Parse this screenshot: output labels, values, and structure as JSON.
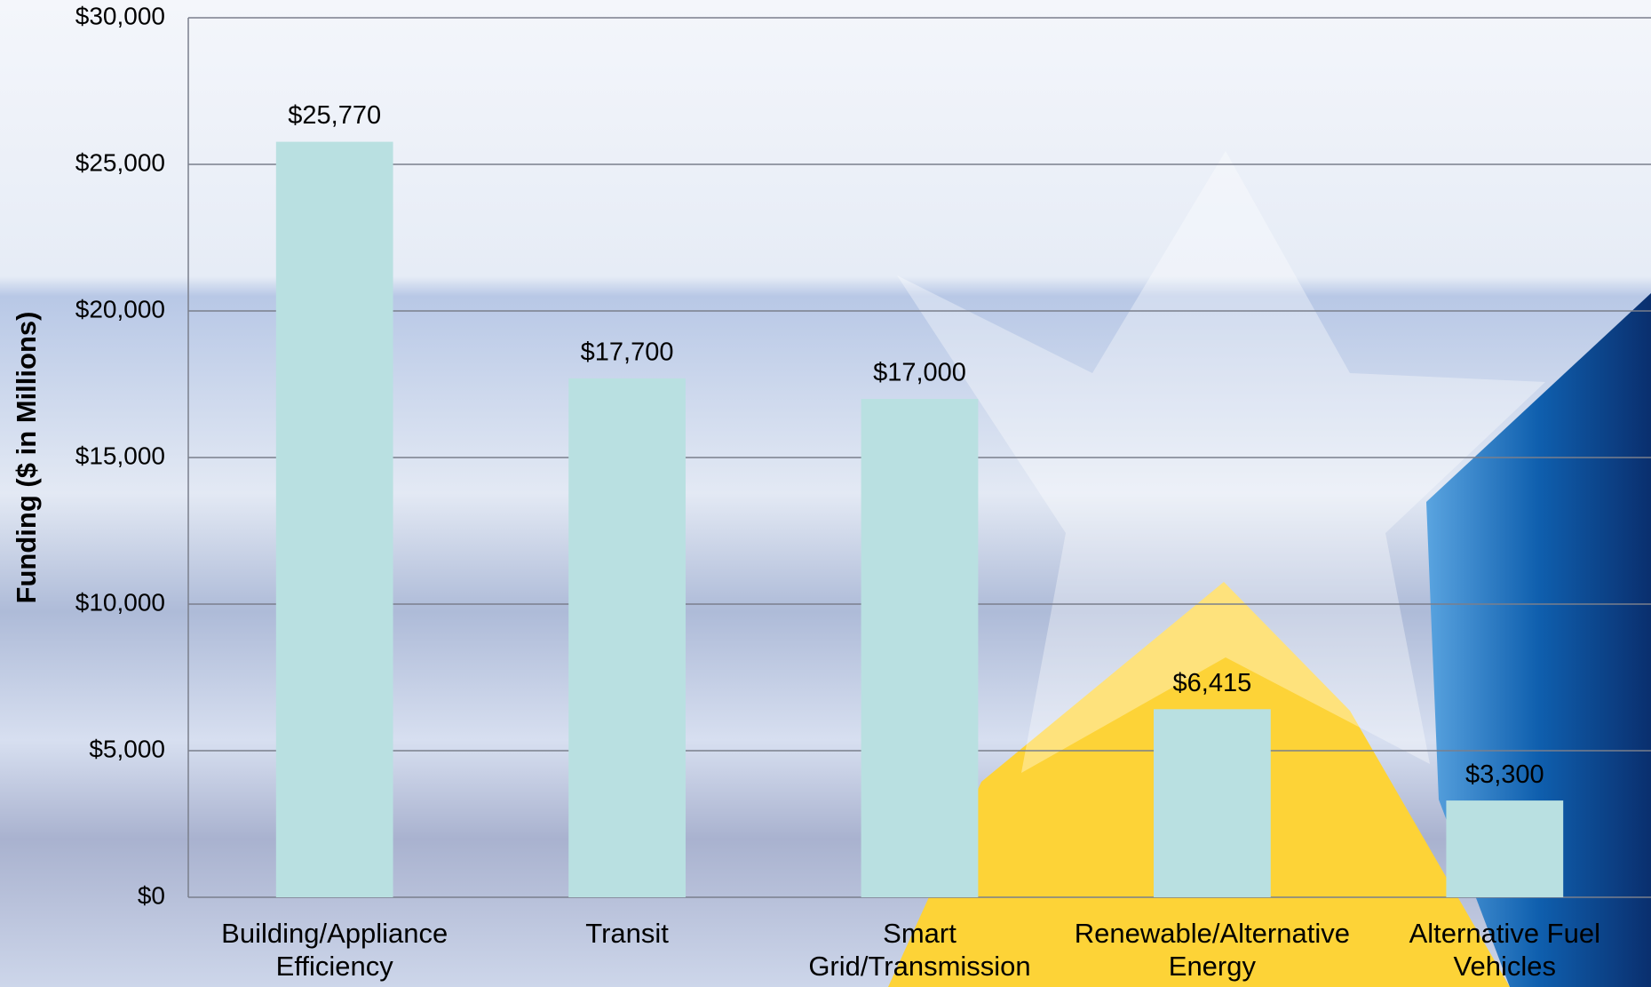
{
  "chart_data": {
    "type": "bar",
    "y_label": "Funding ($ in Millions)",
    "categories": [
      "Building/Appliance Efficiency",
      "Transit",
      "Smart Grid/Transmission",
      "Renewable/Alternative Energy",
      "Alternative Fuel Vehicles"
    ],
    "values": [
      25770,
      17700,
      17000,
      6415,
      3300
    ],
    "value_labels": [
      "$25,770",
      "$17,700",
      "$17,000",
      "$6,415",
      "$3,300"
    ],
    "color": "#b9e0e1",
    "ylim": [
      0,
      30000
    ],
    "yticks": [
      {
        "value": 0,
        "label": "$0"
      },
      {
        "value": 5000,
        "label": "$5,000"
      },
      {
        "value": 10000,
        "label": "$10,000"
      },
      {
        "value": 15000,
        "label": "$15,000"
      },
      {
        "value": 20000,
        "label": "$20,000"
      },
      {
        "value": 25000,
        "label": "$25,000"
      },
      {
        "value": 30000,
        "label": "$30,000"
      }
    ],
    "grid": true
  }
}
